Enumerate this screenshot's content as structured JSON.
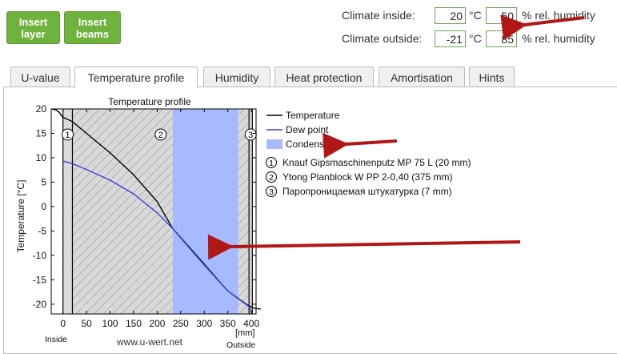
{
  "toolbar": {
    "insert_layer": [
      "Insert",
      "layer"
    ],
    "insert_beams": [
      "Insert",
      "beams"
    ]
  },
  "climate": {
    "inside_label": "Climate inside:",
    "inside_temp": "20",
    "inside_humidity": "50",
    "outside_label": "Climate outside:",
    "outside_temp": "-21",
    "outside_humidity": "85",
    "temp_unit": "°C",
    "humidity_unit": "% rel. humidity"
  },
  "tabs": [
    {
      "label": "U-value"
    },
    {
      "label": "Temperature profile"
    },
    {
      "label": "Humidity"
    },
    {
      "label": "Heat protection"
    },
    {
      "label": "Amortisation"
    },
    {
      "label": "Hints"
    }
  ],
  "chart_data": {
    "type": "line",
    "title": "Temperature profile",
    "ylabel": "Temperature [°C]",
    "xlabel": "[mm]",
    "xlim": [
      -25,
      410
    ],
    "ylim": [
      -22,
      20
    ],
    "x_ticks": [
      0,
      50,
      100,
      150,
      200,
      250,
      300,
      350,
      400
    ],
    "y_ticks": [
      20,
      15,
      10,
      5,
      0,
      -5,
      -10,
      -15,
      -20
    ],
    "inside_label": "Inside",
    "outside_label": "Outside",
    "watermark": "www.u-wert.net",
    "layers": [
      {
        "number": "1",
        "from": 0,
        "to": 20
      },
      {
        "number": "2",
        "from": 20,
        "to": 395
      },
      {
        "number": "3",
        "from": 395,
        "to": 402
      }
    ],
    "condensate_zone": [
      233,
      372
    ],
    "series": [
      {
        "name": "Temperature",
        "color": "#000000",
        "x": [
          -25,
          -15,
          -8,
          -3,
          0,
          20,
          50,
          100,
          150,
          200,
          233,
          300,
          350,
          395,
          402,
          406,
          412,
          420
        ],
        "y": [
          20,
          19.8,
          19.3,
          18.6,
          18.3,
          17.4,
          15.0,
          11.0,
          6.5,
          1.0,
          -4.5,
          -11.8,
          -17.3,
          -20.4,
          -20.6,
          -20.8,
          -20.9,
          -21
        ]
      },
      {
        "name": "Dew point",
        "color": "#3344dd",
        "x": [
          0,
          20,
          50,
          100,
          150,
          200,
          233,
          272,
          300,
          350,
          395,
          402
        ],
        "y": [
          9.3,
          8.8,
          7.6,
          5.4,
          2.6,
          -1.3,
          -4.5,
          -8.9,
          -12.0,
          -17.3,
          -20.5,
          -22
        ]
      }
    ],
    "legend": [
      {
        "label": "Temperature",
        "kind": "line",
        "color": "#000000"
      },
      {
        "label": "Dew point",
        "kind": "line",
        "color": "#3344dd"
      },
      {
        "label": "Condensate",
        "kind": "area",
        "color": "#a8baff"
      }
    ],
    "layer_legend": [
      {
        "number": "1",
        "label": "Knauf Gipsmaschinenputz MP 75 L (20 mm)"
      },
      {
        "number": "2",
        "label": "Ytong Planblock W PP 2-0,40 (375 mm)"
      },
      {
        "number": "3",
        "label": "Паропроницаемая штукатурка (7 mm)"
      }
    ]
  }
}
